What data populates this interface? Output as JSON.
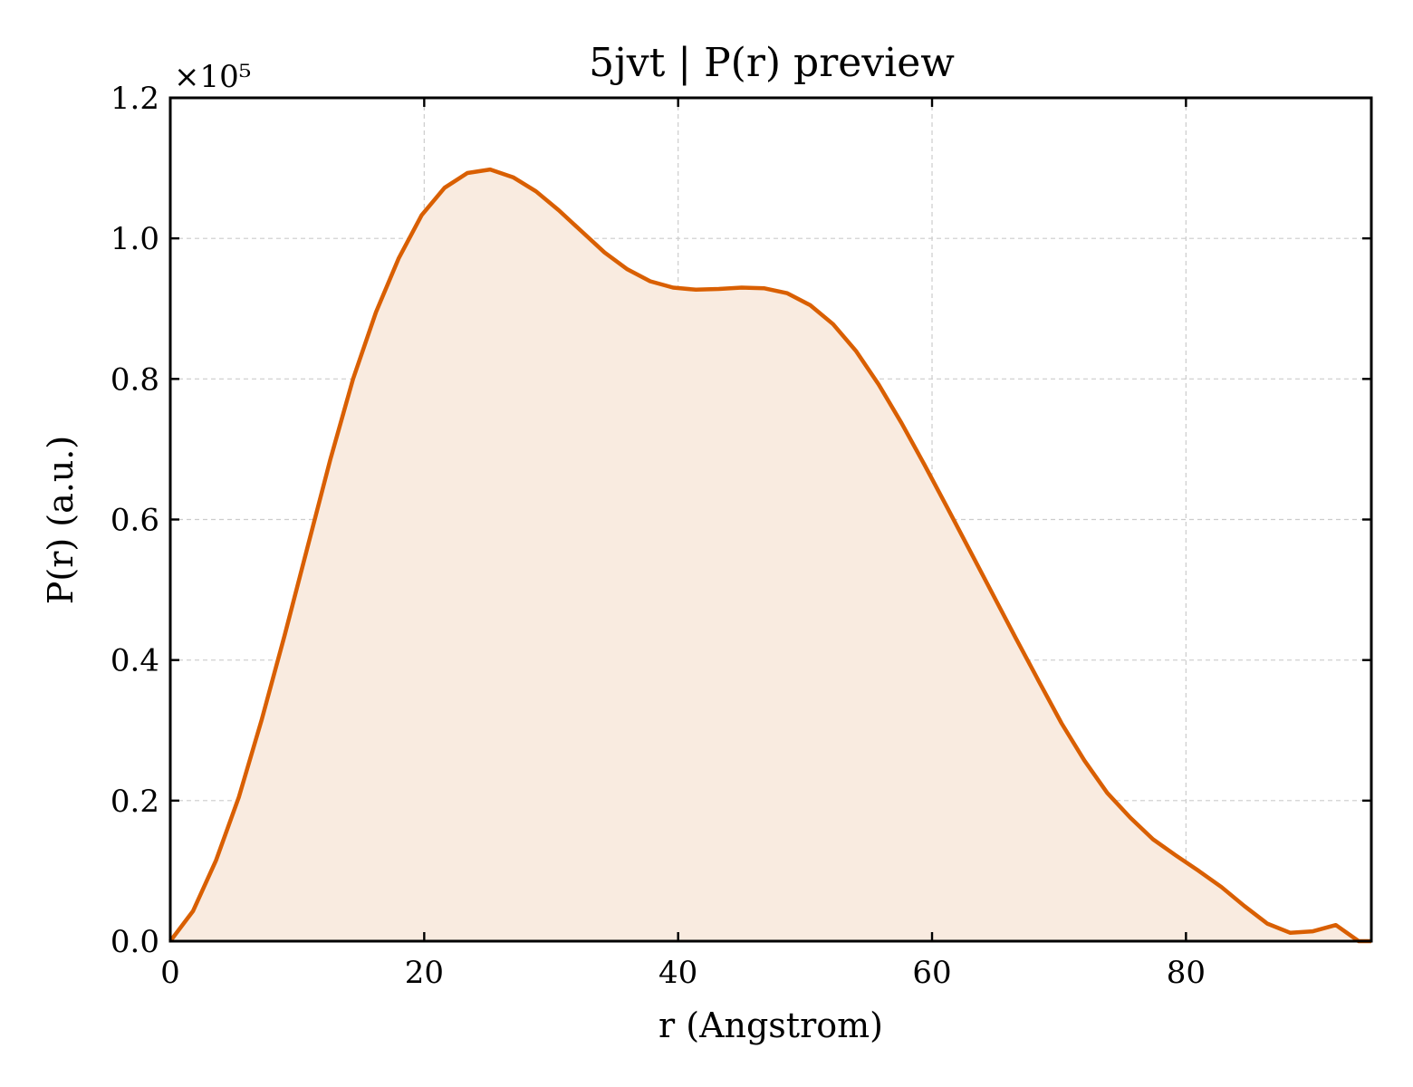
{
  "chart_data": {
    "type": "area",
    "title": "5jvt | P(r) preview",
    "xlabel": "r (Angstrom)",
    "ylabel": "P(r) (a.u.)",
    "y_multiplier": "×10⁵",
    "xlim": [
      0,
      94.6
    ],
    "ylim": [
      0,
      1.2
    ],
    "x_ticks": [
      0,
      20,
      40,
      60,
      80
    ],
    "x_tick_labels": [
      "0",
      "20",
      "40",
      "60",
      "80"
    ],
    "y_ticks": [
      0,
      0.2,
      0.4,
      0.6,
      0.8,
      1.0,
      1.2
    ],
    "y_tick_labels": [
      "0.0",
      "0.2",
      "0.4",
      "0.6",
      "0.8",
      "1.0",
      "1.2"
    ],
    "grid": true,
    "line_color": "#d95f02",
    "fill_color": "#f9ebe0",
    "series": [
      {
        "x": [
          0,
          1.8,
          3.6,
          5.4,
          7.2,
          9.0,
          10.8,
          12.6,
          14.4,
          16.2,
          18.0,
          19.8,
          21.6,
          23.4,
          25.2,
          27.0,
          28.8,
          30.6,
          32.4,
          34.2,
          36.0,
          37.8,
          39.6,
          41.4,
          43.2,
          45.0,
          46.8,
          48.6,
          50.4,
          52.2,
          54.0,
          55.8,
          57.6,
          59.4,
          61.2,
          63.0,
          64.8,
          66.6,
          68.4,
          70.2,
          72.0,
          73.8,
          75.6,
          77.4,
          79.2,
          81.0,
          82.8,
          84.6,
          86.4,
          88.2,
          90.0,
          91.8,
          93.6,
          94.6
        ],
        "y": [
          0.0,
          0.043,
          0.115,
          0.205,
          0.315,
          0.435,
          0.56,
          0.685,
          0.8,
          0.895,
          0.972,
          1.033,
          1.072,
          1.093,
          1.098,
          1.087,
          1.067,
          1.04,
          1.01,
          0.98,
          0.956,
          0.939,
          0.93,
          0.927,
          0.928,
          0.93,
          0.929,
          0.922,
          0.905,
          0.878,
          0.84,
          0.792,
          0.737,
          0.678,
          0.617,
          0.555,
          0.493,
          0.431,
          0.37,
          0.31,
          0.257,
          0.211,
          0.176,
          0.145,
          0.122,
          0.1,
          0.077,
          0.05,
          0.025,
          0.012,
          0.014,
          0.023,
          0.0,
          0.0
        ]
      }
    ]
  }
}
